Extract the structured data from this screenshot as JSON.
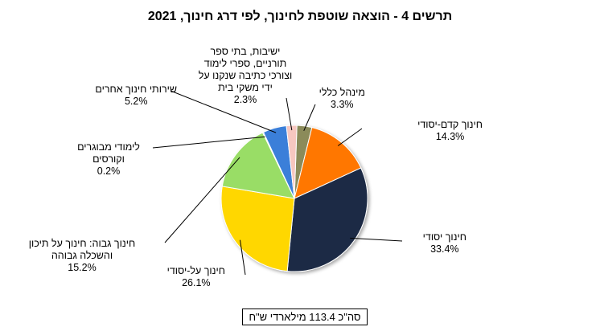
{
  "chart_data": {
    "type": "pie",
    "title": "תרשים 4 - הוצאה שוטפת לחינוך, לפי דרג חינוך, 2021",
    "unit": "%",
    "slices": [
      {
        "label": "מינהל כללי",
        "value": 3.3,
        "display": "3.3%",
        "color": "#8B8B5A"
      },
      {
        "label": "חינוך קדם-יסודי",
        "value": 14.3,
        "display": "14.3%",
        "color": "#FF7700"
      },
      {
        "label": "חינוך יסודי",
        "value": 33.4,
        "display": "33.4%",
        "color": "#1C2B45"
      },
      {
        "label": "חינוך על-יסודי",
        "value": 26.1,
        "display": "26.1%",
        "color": "#FFD700"
      },
      {
        "label": "חינוך גבוה: חינוך על תיכון והשכלה גבוהה",
        "value": 15.2,
        "display": "15.2%",
        "color": "#99DD66"
      },
      {
        "label": "לימודי מבוגרים וקורסים",
        "value": 0.2,
        "display": "0.2%",
        "color": "#2E6B8A"
      },
      {
        "label": "שירותי חינוך אחרים",
        "value": 5.2,
        "display": "5.2%",
        "color": "#3A7FD9"
      },
      {
        "label": "ישיבות, בתי ספר תורניים, ספרי לימוד וצורכי כתיבה שנקנו על ידי משקי בית",
        "value": 2.3,
        "display": "2.3%",
        "color": "#F7C7C0"
      }
    ],
    "total_note": "סה\"כ 113.4 מילארדי ש\"ח",
    "legend": "none"
  }
}
